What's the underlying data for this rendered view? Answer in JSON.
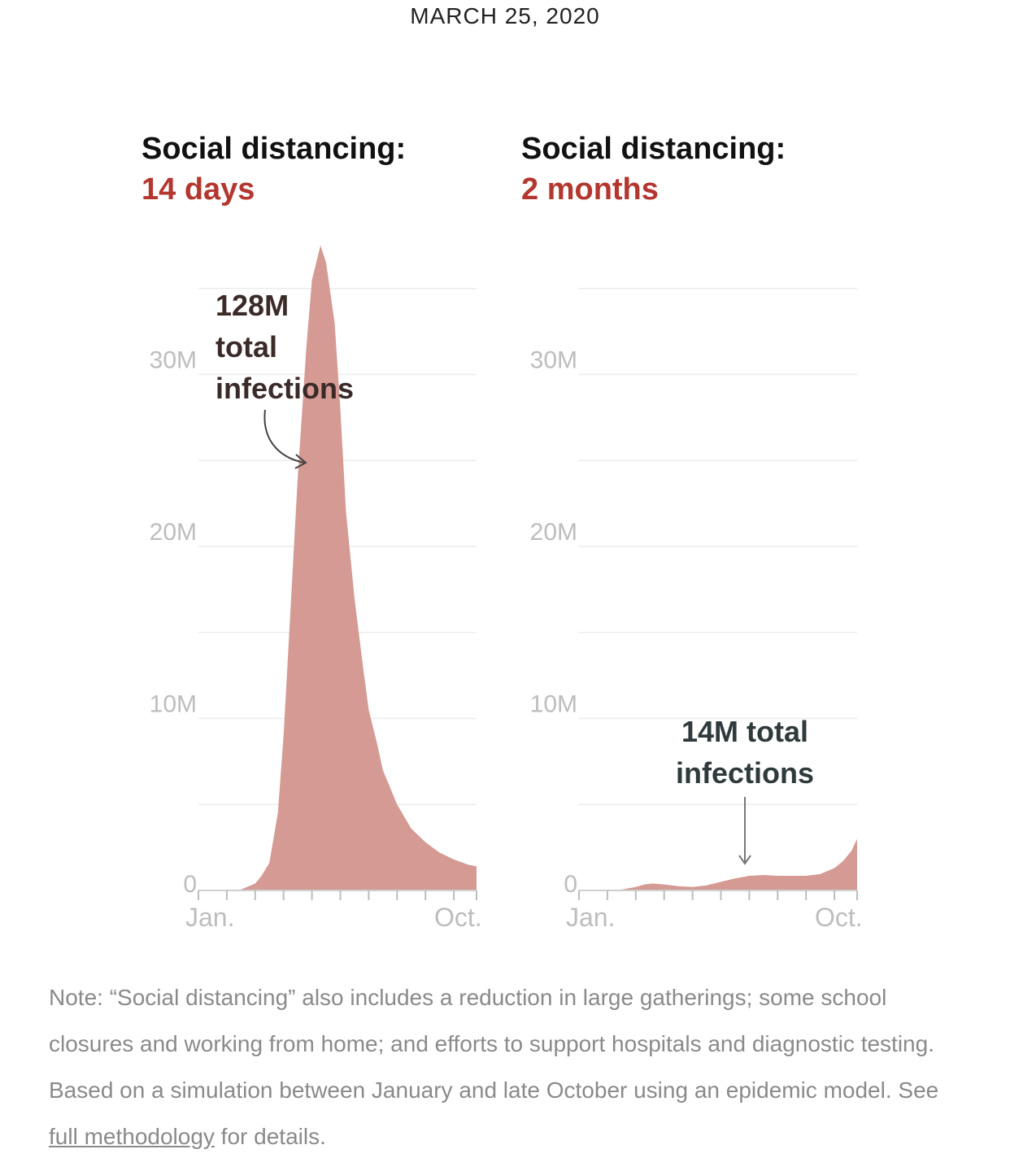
{
  "header": {
    "date": "MARCH 25, 2020"
  },
  "note": {
    "text_before": "Note: “Social distancing” also includes a reduction in large gatherings; some school closures and working from home; and efforts to support hospitals and diagnostic testing. Based on a simulation between January and late October using an epidemic model. See ",
    "link_text": "full methodology",
    "text_after": " for details."
  },
  "colors": {
    "area": "#d49a93",
    "accent": "#b3372f",
    "grid": "#ececec",
    "tick_label": "#bdbdbd"
  },
  "chart_data": [
    {
      "type": "area",
      "title": "Social distancing:",
      "subtitle": "14 days",
      "x_tick_labels": [
        "Jan.",
        "Oct."
      ],
      "y_tick_labels": [
        "0",
        "10M",
        "20M",
        "30M"
      ],
      "y_ticks": [
        0,
        10000000,
        20000000,
        30000000
      ],
      "ylim": [
        0,
        38000000
      ],
      "grid": true,
      "annotation": "128M total infections",
      "annotation_lines": [
        "128M",
        "total",
        "infections"
      ],
      "x_months": [
        0,
        0.5,
        1,
        1.5,
        2,
        2.2,
        2.5,
        2.8,
        3,
        3.2,
        3.5,
        3.8,
        4,
        4.3,
        4.5,
        4.8,
        5,
        5.2,
        5.5,
        5.8,
        6,
        6.3,
        6.5,
        7,
        7.5,
        8,
        8.5,
        9,
        9.5,
        9.8
      ],
      "values": [
        0,
        0,
        0,
        0.05,
        0.4,
        0.8,
        1.6,
        4.5,
        9,
        15,
        24,
        31.5,
        35.5,
        37.5,
        36.5,
        33,
        28,
        22,
        17,
        13,
        10.5,
        8.5,
        7,
        5,
        3.6,
        2.8,
        2.2,
        1.8,
        1.5,
        1.4
      ]
    },
    {
      "type": "area",
      "title": "Social distancing:",
      "subtitle": "2 months",
      "x_tick_labels": [
        "Jan.",
        "Oct."
      ],
      "y_tick_labels": [
        "0",
        "10M",
        "20M",
        "30M"
      ],
      "y_ticks": [
        0,
        10000000,
        20000000,
        30000000
      ],
      "ylim": [
        0,
        38000000
      ],
      "grid": true,
      "annotation": "14M total infections",
      "annotation_lines": [
        "14M total",
        "infections"
      ],
      "x_months": [
        0,
        0.5,
        1,
        1.5,
        2,
        2.3,
        2.6,
        3,
        3.5,
        4,
        4.5,
        5,
        5.5,
        6,
        6.5,
        7,
        7.5,
        8,
        8.5,
        9,
        9.3,
        9.6,
        9.8
      ],
      "values": [
        0,
        0,
        0,
        0.05,
        0.2,
        0.35,
        0.4,
        0.35,
        0.25,
        0.2,
        0.3,
        0.5,
        0.7,
        0.85,
        0.9,
        0.85,
        0.85,
        0.85,
        0.95,
        1.3,
        1.7,
        2.3,
        3.0
      ]
    }
  ]
}
